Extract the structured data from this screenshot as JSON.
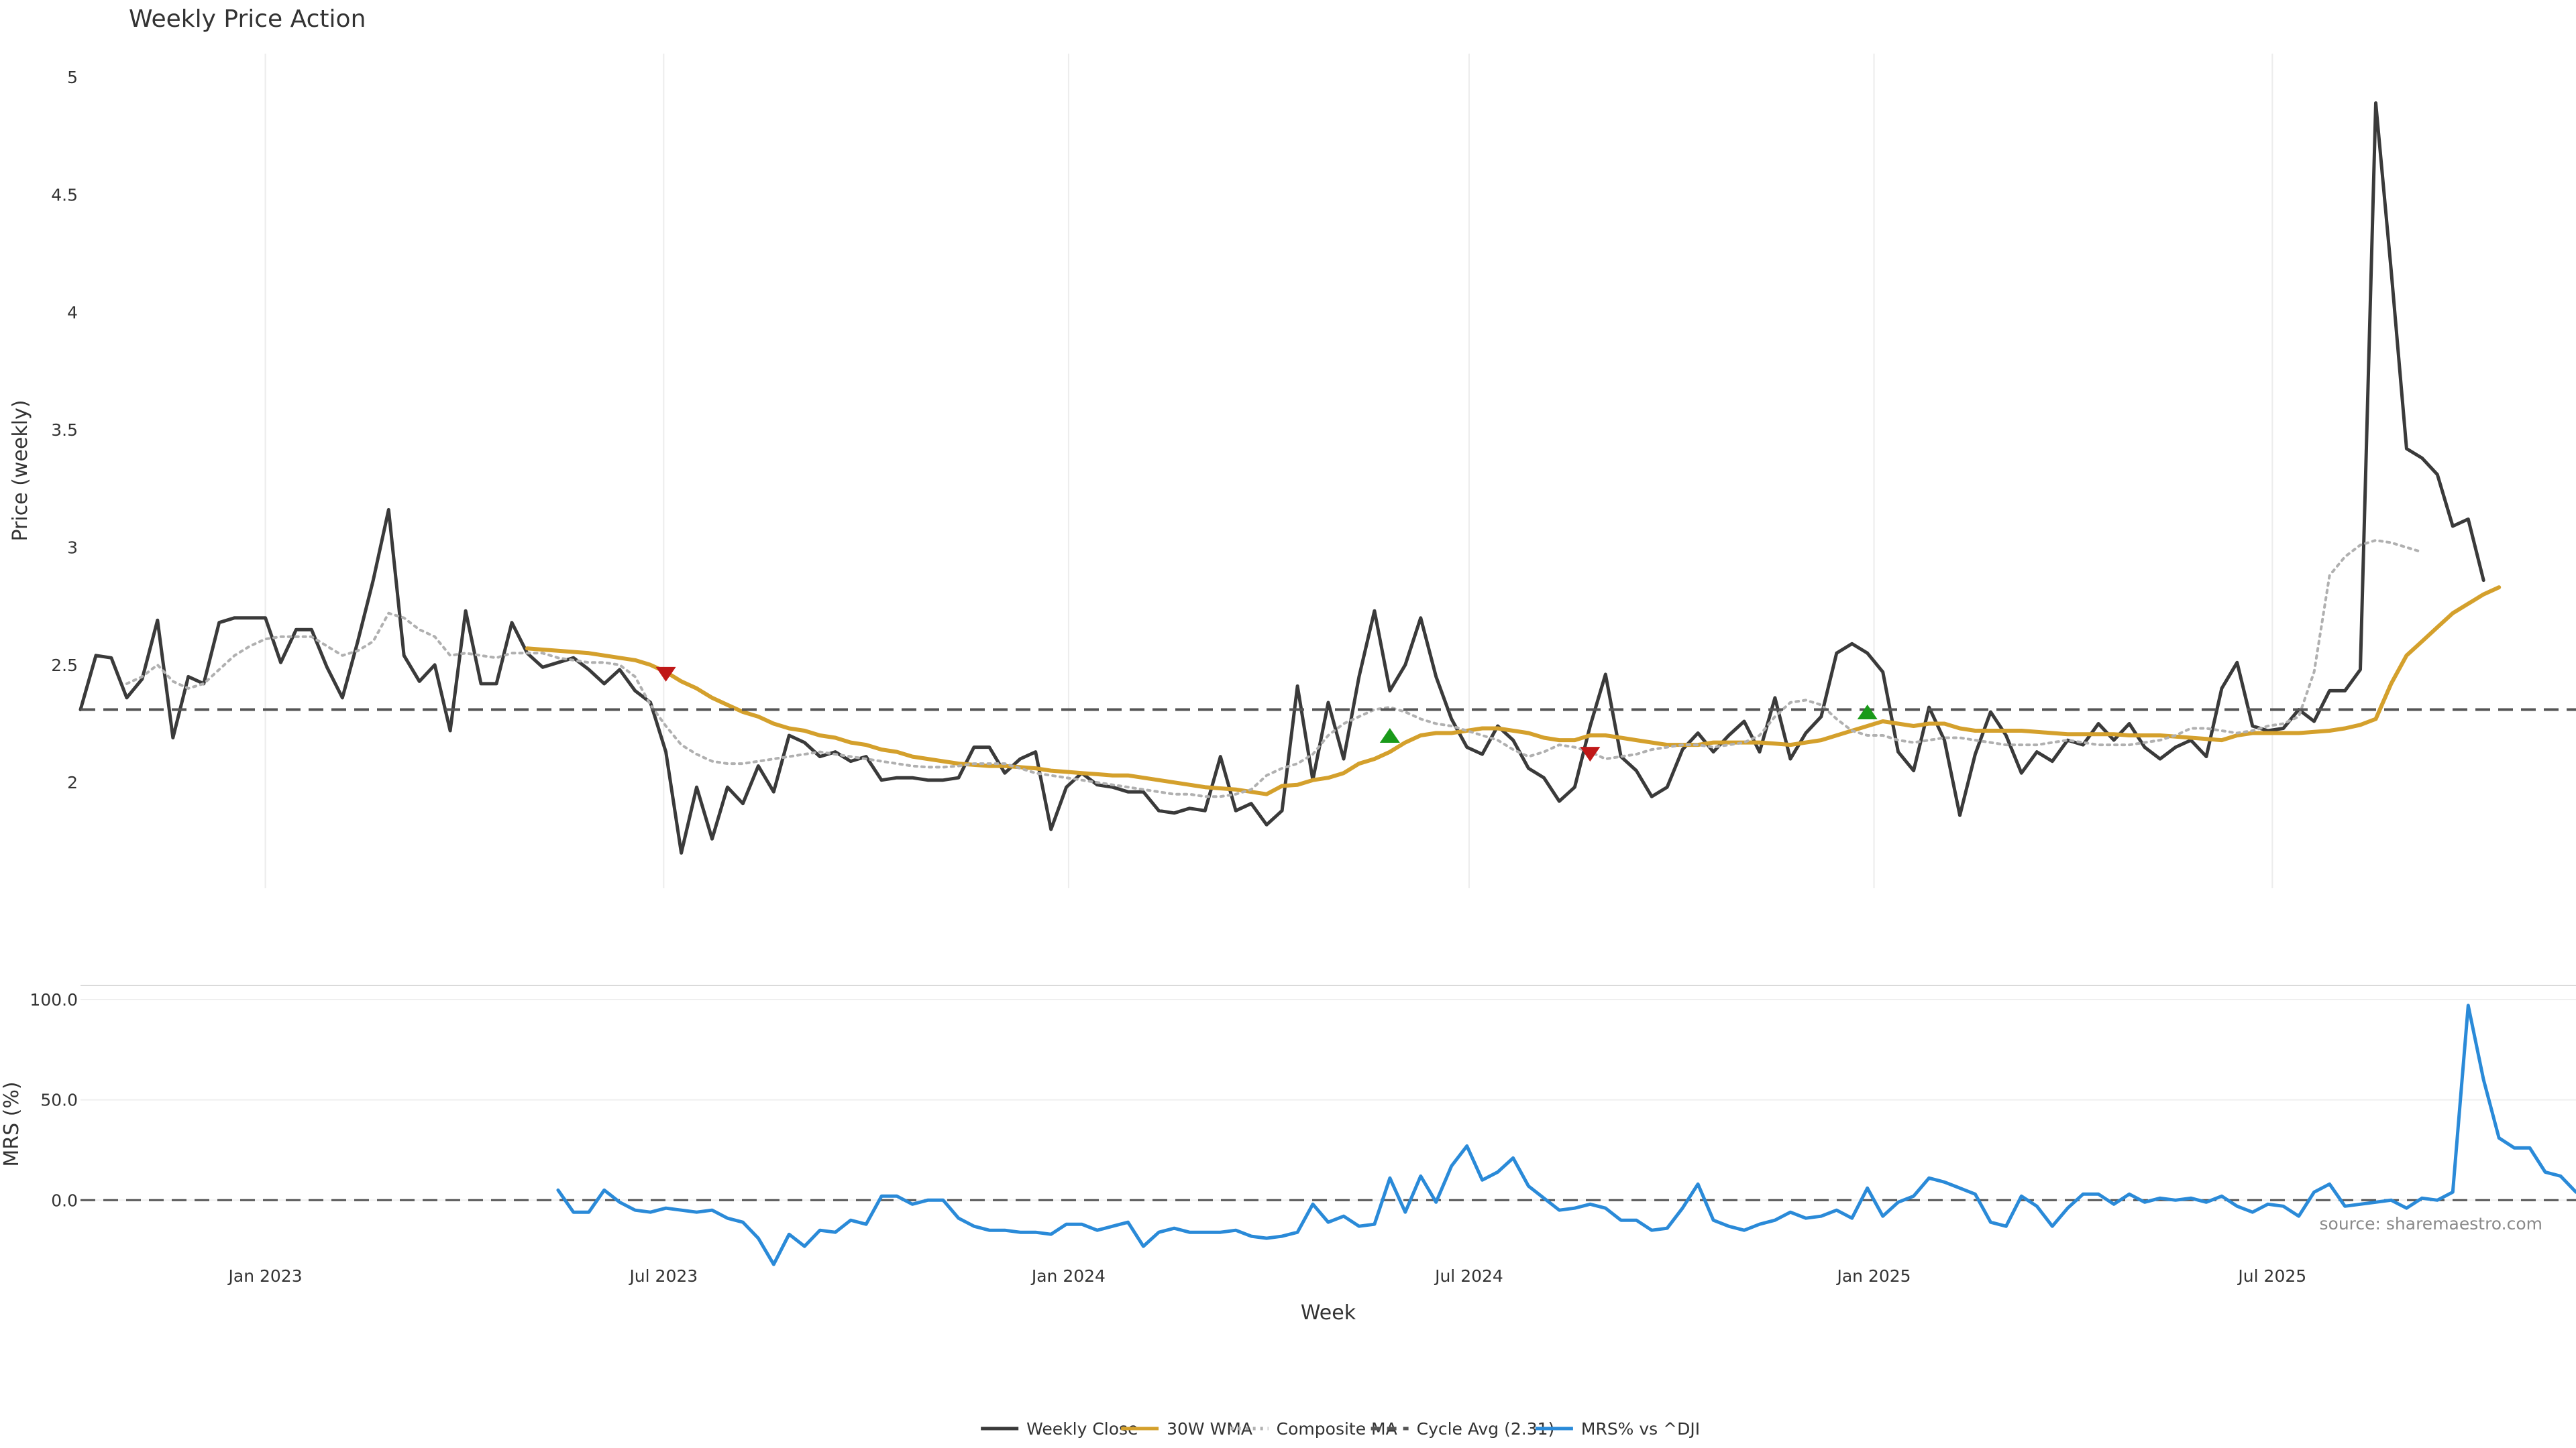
{
  "chart_data": [
    {
      "type": "line",
      "title": "Weekly Price Action",
      "ylabel": "Price (weekly)",
      "ylim": [
        1.55,
        5.1
      ],
      "yticks": [
        2,
        2.5,
        3,
        3.5,
        4,
        4.5,
        5
      ],
      "ytick_labels": [
        "2",
        "2.5",
        "3",
        "3.5",
        "4",
        "4.5",
        "5"
      ],
      "xlim": [
        "2022-10-09",
        "2025-11-16"
      ],
      "xticks": [
        "2023-01-01",
        "2023-07-01",
        "2024-01-01",
        "2024-07-01",
        "2025-01-01",
        "2025-07-01"
      ],
      "xtick_labels": [
        "Jan 2023",
        "Jul 2023",
        "Jan 2024",
        "Jul 2024",
        "Jan 2025",
        "Jul 2025"
      ],
      "grid": "vertical",
      "x_start": "2022-10-09",
      "x_step_days": 7,
      "series": [
        {
          "name": "Weekly Close",
          "color": "#3a3a3a",
          "style": "solid",
          "values": [
            2.31,
            2.54,
            2.53,
            2.36,
            2.44,
            2.69,
            2.19,
            2.45,
            2.42,
            2.68,
            2.7,
            2.7,
            2.7,
            2.51,
            2.65,
            2.65,
            2.49,
            2.36,
            2.6,
            2.86,
            3.16,
            2.54,
            2.43,
            2.5,
            2.22,
            2.73,
            2.42,
            2.42,
            2.68,
            2.55,
            2.49,
            2.51,
            2.53,
            2.48,
            2.42,
            2.48,
            2.39,
            2.34,
            2.13,
            1.7,
            1.98,
            1.76,
            1.98,
            1.91,
            2.07,
            1.96,
            2.2,
            2.17,
            2.11,
            2.13,
            2.09,
            2.11,
            2.01,
            2.02,
            2.02,
            2.01,
            2.01,
            2.02,
            2.15,
            2.15,
            2.04,
            2.1,
            2.13,
            1.8,
            1.98,
            2.04,
            1.99,
            1.98,
            1.96,
            1.96,
            1.88,
            1.87,
            1.89,
            1.88,
            2.11,
            1.88,
            1.91,
            1.82,
            1.88,
            2.41,
            2.01,
            2.34,
            2.1,
            2.45,
            2.73,
            2.39,
            2.5,
            2.7,
            2.45,
            2.27,
            2.15,
            2.12,
            2.24,
            2.18,
            2.06,
            2.02,
            1.92,
            1.98,
            2.24,
            2.46,
            2.11,
            2.05,
            1.94,
            1.98,
            2.14,
            2.21,
            2.13,
            2.2,
            2.26,
            2.13,
            2.36,
            2.1,
            2.21,
            2.28,
            2.55,
            2.59,
            2.55,
            2.47,
            2.13,
            2.05,
            2.32,
            2.18,
            1.86,
            2.12,
            2.3,
            2.2,
            2.04,
            2.13,
            2.09,
            2.18,
            2.16,
            2.25,
            2.18,
            2.25,
            2.15,
            2.1,
            2.15,
            2.18,
            2.11,
            2.4,
            2.51,
            2.24,
            2.22,
            2.23,
            2.31,
            2.26,
            2.39,
            2.39,
            2.48,
            4.89,
            4.18,
            3.42,
            3.38,
            3.31,
            3.09,
            3.12,
            2.86
          ]
        },
        {
          "name": "30W WMA",
          "color": "#d4a02c",
          "style": "solid",
          "start_index": 29,
          "values": [
            2.57,
            2.565,
            2.56,
            2.555,
            2.55,
            2.54,
            2.53,
            2.52,
            2.5,
            2.47,
            2.43,
            2.4,
            2.36,
            2.33,
            2.3,
            2.28,
            2.25,
            2.23,
            2.22,
            2.2,
            2.19,
            2.17,
            2.16,
            2.14,
            2.13,
            2.11,
            2.1,
            2.09,
            2.08,
            2.075,
            2.07,
            2.07,
            2.065,
            2.06,
            2.05,
            2.045,
            2.04,
            2.035,
            2.03,
            2.03,
            2.02,
            2.01,
            2.0,
            1.99,
            1.98,
            1.975,
            1.97,
            1.96,
            1.95,
            1.985,
            1.99,
            2.01,
            2.02,
            2.04,
            2.08,
            2.1,
            2.13,
            2.17,
            2.2,
            2.21,
            2.21,
            2.22,
            2.23,
            2.23,
            2.22,
            2.21,
            2.19,
            2.18,
            2.18,
            2.2,
            2.2,
            2.19,
            2.18,
            2.17,
            2.16,
            2.16,
            2.16,
            2.17,
            2.17,
            2.17,
            2.17,
            2.165,
            2.16,
            2.17,
            2.18,
            2.2,
            2.22,
            2.24,
            2.26,
            2.25,
            2.24,
            2.25,
            2.25,
            2.23,
            2.22,
            2.22,
            2.22,
            2.22,
            2.215,
            2.21,
            2.205,
            2.205,
            2.205,
            2.205,
            2.2,
            2.2,
            2.2,
            2.195,
            2.19,
            2.185,
            2.18,
            2.2,
            2.21,
            2.21,
            2.21,
            2.21,
            2.215,
            2.22,
            2.23,
            2.245,
            2.27,
            2.42,
            2.54,
            2.6,
            2.66,
            2.72,
            2.76,
            2.8,
            2.83
          ]
        },
        {
          "name": "Composite MA",
          "color": "#b0b0b0",
          "style": "dotted",
          "start_index": 3,
          "values": [
            2.42,
            2.45,
            2.5,
            2.43,
            2.4,
            2.42,
            2.48,
            2.54,
            2.58,
            2.61,
            2.62,
            2.62,
            2.62,
            2.58,
            2.54,
            2.56,
            2.6,
            2.72,
            2.7,
            2.65,
            2.62,
            2.54,
            2.55,
            2.54,
            2.53,
            2.55,
            2.55,
            2.55,
            2.53,
            2.52,
            2.51,
            2.51,
            2.5,
            2.45,
            2.33,
            2.24,
            2.16,
            2.12,
            2.09,
            2.08,
            2.08,
            2.09,
            2.1,
            2.11,
            2.12,
            2.13,
            2.12,
            2.11,
            2.1,
            2.09,
            2.08,
            2.07,
            2.065,
            2.065,
            2.07,
            2.08,
            2.08,
            2.08,
            2.06,
            2.04,
            2.03,
            2.02,
            2.01,
            2.0,
            1.99,
            1.98,
            1.97,
            1.96,
            1.95,
            1.95,
            1.94,
            1.94,
            1.95,
            1.97,
            2.03,
            2.06,
            2.08,
            2.12,
            2.2,
            2.25,
            2.28,
            2.31,
            2.32,
            2.3,
            2.27,
            2.25,
            2.24,
            2.22,
            2.2,
            2.18,
            2.14,
            2.11,
            2.13,
            2.16,
            2.15,
            2.13,
            2.1,
            2.11,
            2.12,
            2.14,
            2.15,
            2.16,
            2.16,
            2.15,
            2.16,
            2.17,
            2.2,
            2.28,
            2.34,
            2.35,
            2.33,
            2.27,
            2.22,
            2.2,
            2.2,
            2.18,
            2.17,
            2.18,
            2.19,
            2.19,
            2.18,
            2.17,
            2.16,
            2.16,
            2.16,
            2.17,
            2.18,
            2.17,
            2.16,
            2.16,
            2.16,
            2.17,
            2.18,
            2.2,
            2.23,
            2.23,
            2.22,
            2.21,
            2.22,
            2.24,
            2.25,
            2.28,
            2.47,
            2.88,
            2.96,
            3.01,
            3.03,
            3.02,
            3.0,
            2.98
          ]
        },
        {
          "name": "Cycle Avg (2.31)",
          "color": "#555555",
          "style": "dashed",
          "constant": 2.31
        }
      ],
      "markers": [
        {
          "type": "triangle-down",
          "color": "#c01818",
          "index": 38,
          "value": 2.46
        },
        {
          "type": "triangle-up",
          "color": "#1a9a1a",
          "index": 85,
          "value": 2.2
        },
        {
          "type": "triangle-down",
          "color": "#c01818",
          "index": 98,
          "value": 2.12
        },
        {
          "type": "triangle-up",
          "color": "#1a9a1a",
          "index": 116,
          "value": 2.3
        }
      ]
    },
    {
      "type": "line",
      "xlabel": "Week",
      "ylabel": "MRS (%)",
      "ylim": [
        -40,
        107
      ],
      "yticks": [
        0,
        50,
        100
      ],
      "ytick_labels": [
        "0.0",
        "50.0",
        "100.0"
      ],
      "grid": "horizontal",
      "annotation": "source: sharemaestro.com",
      "zero_line": 0,
      "series": [
        {
          "name": "MRS% vs ^DJI",
          "color": "#2a8ad8",
          "style": "solid",
          "start_index": 31,
          "values": [
            5,
            -6,
            -6,
            5,
            -1,
            -5,
            -6,
            -4,
            -5,
            -6,
            -5,
            -9,
            -11,
            -19,
            -32,
            -17,
            -23,
            -15,
            -16,
            -10,
            -12,
            2,
            2,
            -2,
            0,
            0,
            -9,
            -13,
            -15,
            -15,
            -16,
            -16,
            -17,
            -12,
            -12,
            -15,
            -13,
            -11,
            -23,
            -16,
            -14,
            -16,
            -16,
            -16,
            -15,
            -18,
            -19,
            -18,
            -16,
            -2,
            -11,
            -8,
            -13,
            -12,
            11,
            -6,
            12,
            -1,
            17,
            27,
            10,
            14,
            21,
            7,
            1,
            -5,
            -4,
            -2,
            -4,
            -10,
            -10,
            -15,
            -14,
            -4,
            8,
            -10,
            -13,
            -15,
            -12,
            -10,
            -6,
            -9,
            -8,
            -5,
            -9,
            6,
            -8,
            -1,
            2,
            11,
            9,
            6,
            3,
            -11,
            -13,
            2,
            -3,
            -13,
            -4,
            3,
            3,
            -2,
            3,
            -1,
            1,
            0,
            1,
            -1,
            2,
            -3,
            -6,
            -2,
            -3,
            -8,
            4,
            8,
            -3,
            -2,
            -1,
            0,
            -4,
            1,
            0,
            4,
            97,
            60,
            31,
            26,
            26,
            14,
            12,
            4
          ]
        }
      ]
    }
  ],
  "legend": {
    "position": "bottom",
    "items": [
      {
        "label": "Weekly Close",
        "color": "#3a3a3a",
        "style": "solid"
      },
      {
        "label": "30W WMA",
        "color": "#d4a02c",
        "style": "solid"
      },
      {
        "label": "Composite MA",
        "color": "#b0b0b0",
        "style": "dotted"
      },
      {
        "label": "Cycle Avg (2.31)",
        "color": "#555555",
        "style": "dashed"
      },
      {
        "label": "MRS% vs ^DJI",
        "color": "#2a8ad8",
        "style": "solid"
      }
    ]
  }
}
